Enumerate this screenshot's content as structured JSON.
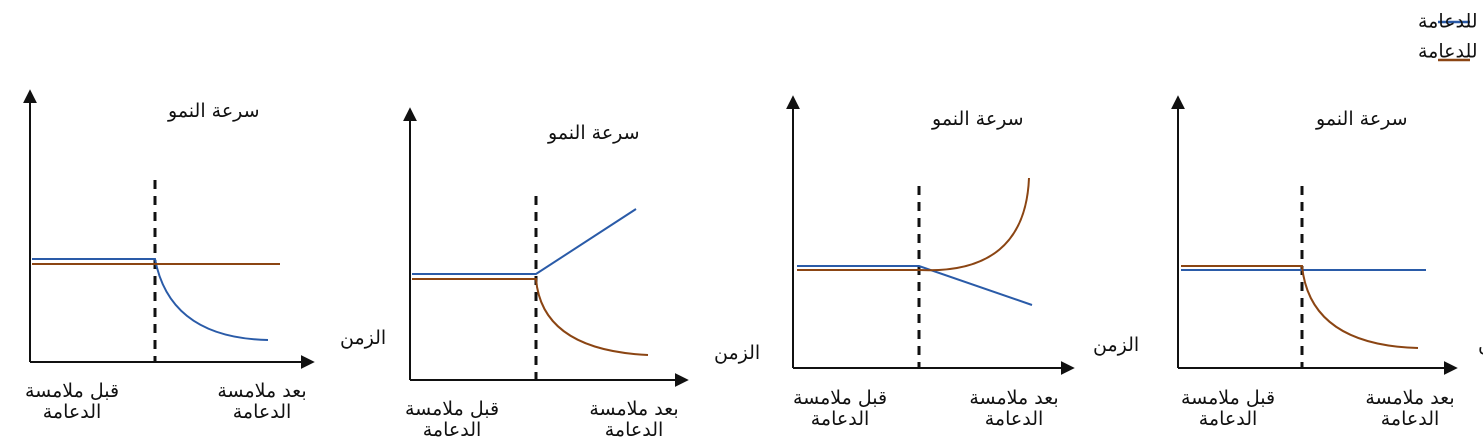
{
  "legend": {
    "touching": {
      "label": "جانب المحلاق الملامس للدعامة",
      "color": "#2a5ba8"
    },
    "non_touching": {
      "label": "جانب المحلاق الغير الملامس للدعامة",
      "color": "#8b4513"
    }
  },
  "axis_text": {
    "y": "سرعة النمو",
    "x": "الزمن",
    "before_1": "قبل ملامسة",
    "before_2": "الدعامة",
    "after_1": "بعد ملامسة",
    "after_2": "الدعامة"
  },
  "chart_data": [
    {
      "type": "line",
      "x_categories": [
        "قبل ملامسة الدعامة",
        "بعد ملامسة الدعامة"
      ],
      "series": [
        {
          "name": "جانب المحلاق الملامس للدعامة",
          "shape": "constant then decreasing curve"
        },
        {
          "name": "جانب المحلاق الغير الملامس للدعامة",
          "shape": "constant"
        }
      ]
    },
    {
      "type": "line",
      "x_categories": [
        "قبل ملامسة الدعامة",
        "بعد ملامسة الدعامة"
      ],
      "series": [
        {
          "name": "جانب المحلاق الملامس للدعامة",
          "shape": "constant then increasing line"
        },
        {
          "name": "جانب المحلاق الغير الملامس للدعامة",
          "shape": "constant then decreasing curve"
        }
      ]
    },
    {
      "type": "line",
      "x_categories": [
        "قبل ملامسة الدعامة",
        "بعد ملامسة الدعامة"
      ],
      "series": [
        {
          "name": "جانب المحلاق الملامس للدعامة",
          "shape": "constant then decreasing line"
        },
        {
          "name": "جانب المحلاق الغير الملامس للدعامة",
          "shape": "constant then increasing curve"
        }
      ]
    },
    {
      "type": "line",
      "x_categories": [
        "قبل ملامسة الدعامة",
        "بعد ملامسة الدعامة"
      ],
      "series": [
        {
          "name": "جانب المحلاق الملامس للدعامة",
          "shape": "constant"
        },
        {
          "name": "جانب المحلاق الغير الملامس للدعامة",
          "shape": "constant then decreasing curve"
        }
      ]
    }
  ]
}
